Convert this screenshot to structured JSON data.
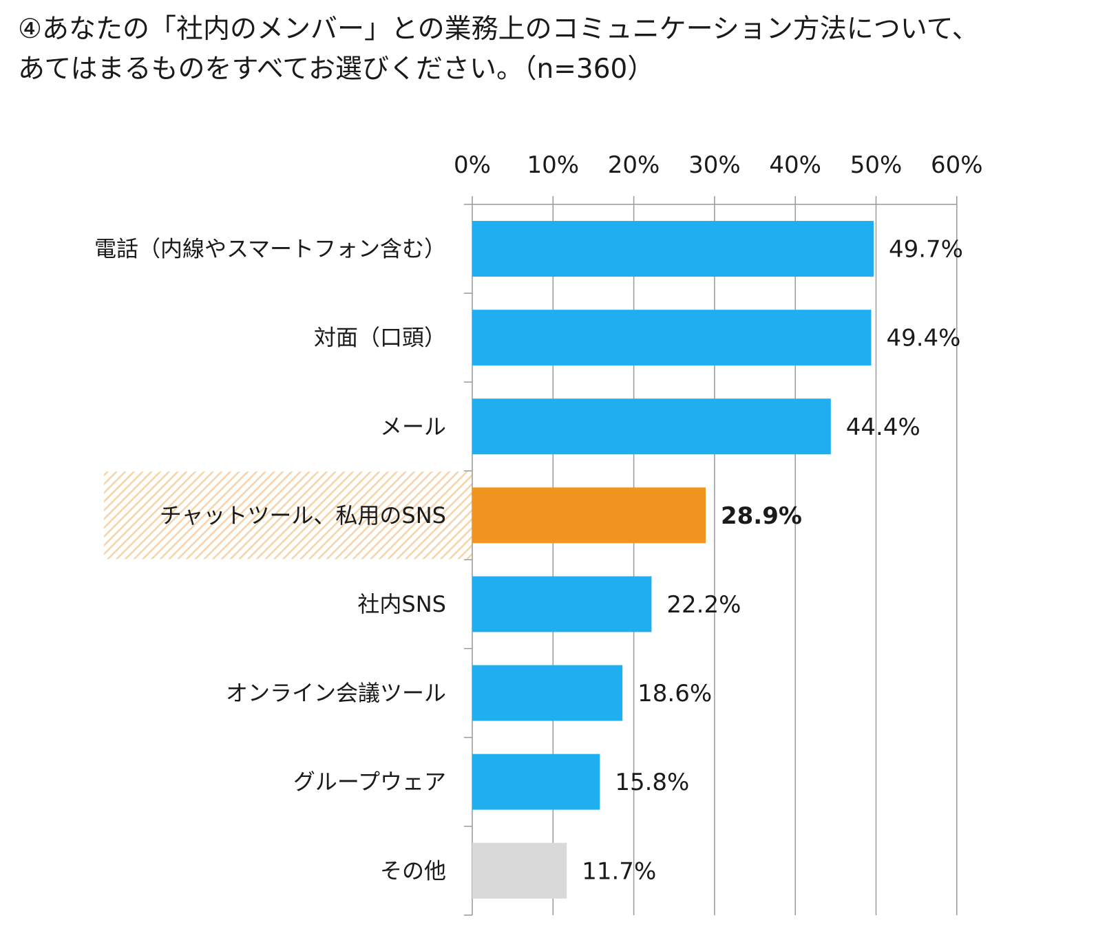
{
  "title": {
    "line1": "④あなたの「社内のメンバー」との業務上のコミュニケーション方法について、",
    "line2": "あてはまるものをすべてお選びください。（n=360）"
  },
  "chart_data": {
    "type": "bar",
    "orientation": "horizontal",
    "title": "④あなたの「社内のメンバー」との業務上のコミュニケーション方法について、あてはまるものをすべてお選びください。（n=360）",
    "xlim": [
      0,
      60
    ],
    "xticks": [
      0,
      10,
      20,
      30,
      40,
      50,
      60
    ],
    "xtick_labels": [
      "0%",
      "10%",
      "20%",
      "30%",
      "40%",
      "50%",
      "60%"
    ],
    "axis_position": "top",
    "grid": true,
    "categories": [
      "電話（内線やスマートフォン含む）",
      "対面（口頭）",
      "メール",
      "チャットツール、私用のSNS",
      "社内SNS",
      "オンライン会議ツール",
      "グループウェア",
      "その他"
    ],
    "values": [
      49.7,
      49.4,
      44.4,
      28.9,
      22.2,
      18.6,
      15.8,
      11.7
    ],
    "value_labels": [
      "49.7%",
      "49.4%",
      "44.4%",
      "28.9%",
      "22.2%",
      "18.6%",
      "15.8%",
      "11.7%"
    ],
    "highlight_index": 3,
    "colors": {
      "default": "#1faeef",
      "highlight": "#f29420",
      "other": "#d9d9d9",
      "highlight_band": "#f6d3a8",
      "grid": "#999999"
    }
  }
}
